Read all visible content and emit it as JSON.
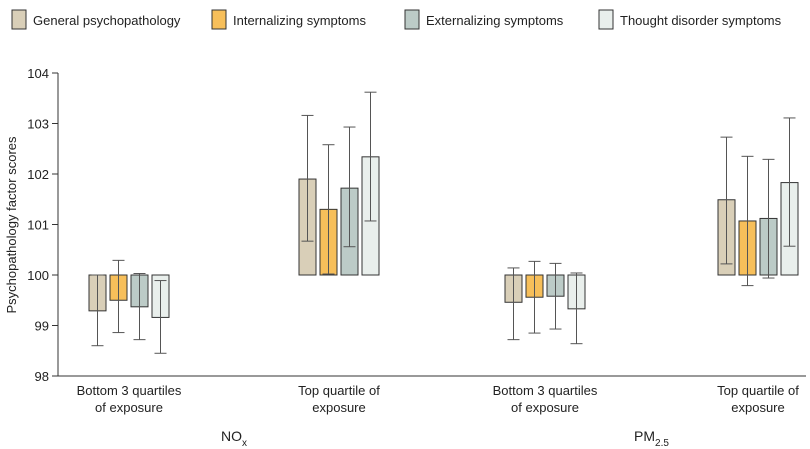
{
  "chart_data": {
    "type": "bar",
    "ylabel": "Psychopathology factor scores",
    "ylim": [
      98,
      104
    ],
    "yticks": [
      "98",
      "99",
      "100",
      "101",
      "102",
      "103",
      "104"
    ],
    "baseline": 100,
    "grid": false,
    "legend_position": "top",
    "groups": [
      {
        "name": "NO",
        "name_sub": "x",
        "categories": [
          {
            "label_lines": [
              "Bottom 3 quartiles",
              "of exposure"
            ]
          },
          {
            "label_lines": [
              "Top quartile of",
              "exposure"
            ]
          }
        ]
      },
      {
        "name": "PM",
        "name_sub": "2.5",
        "categories": [
          {
            "label_lines": [
              "Bottom 3 quartiles",
              "of exposure"
            ]
          },
          {
            "label_lines": [
              "Top quartile of",
              "exposure"
            ]
          }
        ]
      }
    ],
    "series": [
      {
        "name": "General psychopathology",
        "color": "#d9cfb8",
        "values": [
          99.29,
          101.9,
          99.46,
          101.49
        ],
        "ci_low": [
          98.6,
          100.67,
          98.72,
          100.22
        ],
        "ci_high": [
          100.0,
          103.16,
          100.14,
          102.73
        ]
      },
      {
        "name": "Internalizing symptoms",
        "color": "#f7bf5a",
        "values": [
          99.5,
          101.3,
          99.56,
          101.07
        ],
        "ci_low": [
          98.86,
          100.02,
          98.85,
          99.79
        ],
        "ci_high": [
          100.29,
          102.58,
          100.27,
          102.35
        ]
      },
      {
        "name": "Externalizing symptoms",
        "color": "#bccbc7",
        "values": [
          99.37,
          101.72,
          99.58,
          101.12
        ],
        "ci_low": [
          98.72,
          100.56,
          98.93,
          99.94
        ],
        "ci_high": [
          100.03,
          102.93,
          100.23,
          102.29
        ]
      },
      {
        "name": "Thought disorder symptoms",
        "color": "#e9efec",
        "values": [
          99.16,
          102.34,
          99.33,
          101.83
        ],
        "ci_low": [
          98.45,
          101.07,
          98.64,
          100.57
        ],
        "ci_high": [
          99.89,
          103.62,
          100.04,
          103.11
        ]
      }
    ]
  }
}
